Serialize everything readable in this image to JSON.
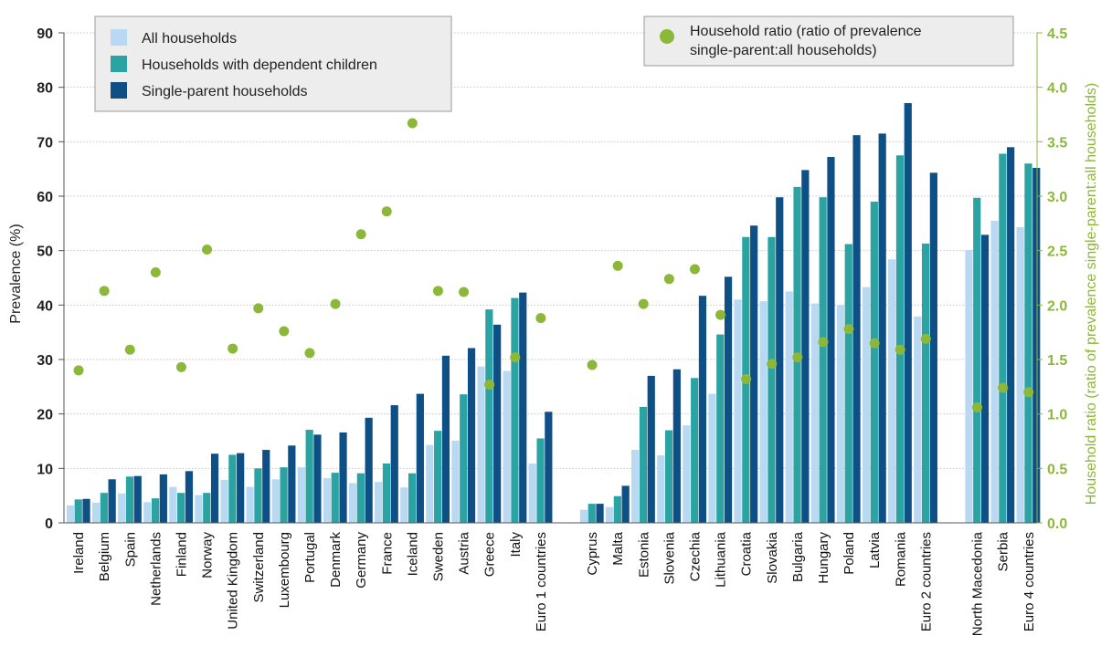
{
  "chart_data": {
    "type": "bar",
    "ylabel": "Prevalence (%)",
    "y2label": "Household  ratio (ratio of prevalence single-parent:all households)",
    "ylim": [
      0,
      90
    ],
    "y2lim": [
      0,
      4.5
    ],
    "yticks": [
      "0",
      "10",
      "20",
      "30",
      "40",
      "50",
      "60",
      "70",
      "80",
      "90"
    ],
    "y2ticks": [
      "0.0",
      "0.5",
      "1.0",
      "1.5",
      "2.0",
      "2.5",
      "3.0",
      "3.5",
      "4.0",
      "4.5"
    ],
    "grid": "horizontal",
    "groups": [
      {
        "start": 0,
        "end": 19
      },
      {
        "start": 20,
        "end": 36
      },
      {
        "start": 37,
        "end": 39
      }
    ],
    "categories": [
      "Ireland",
      "Belgium",
      "Spain",
      "Netherlands",
      "Finland",
      "Norway",
      "United Kingdom",
      "Switzerland",
      "Luxembourg",
      "Portugal",
      "Denmark",
      "Germany",
      "France",
      "Iceland",
      "Sweden",
      "Austria",
      "Greece",
      "Italy",
      "Euro 1 countries",
      "Cyprus",
      "Malta",
      "Estonia",
      "Slovenia",
      "Czechia",
      "Lithuania",
      "Croatia",
      "Slovakia",
      "Bulgaria",
      "Hungary",
      "Poland",
      "Latvia",
      "Romania",
      "Euro 2 countries",
      "North Macedonia",
      "Serbia",
      "Euro 4 countries"
    ],
    "series": [
      {
        "name": "All households",
        "color": "#b9d8f2",
        "values": [
          3.2,
          3.7,
          5.4,
          3.8,
          6.6,
          5.1,
          7.9,
          6.6,
          8.0,
          10.2,
          8.2,
          7.3,
          7.5,
          6.5,
          14.3,
          15.1,
          28.7,
          27.9,
          10.9,
          2.4,
          2.9,
          13.4,
          12.4,
          17.9,
          23.7,
          41.0,
          40.7,
          42.5,
          40.3,
          40.0,
          43.3,
          48.4,
          37.9,
          50.1,
          55.5,
          54.3
        ]
      },
      {
        "name": "Households with dependent children",
        "color": "#2ba3a3",
        "values": [
          4.3,
          5.5,
          8.5,
          4.5,
          5.5,
          5.5,
          12.5,
          10.0,
          10.2,
          17.1,
          9.2,
          9.1,
          10.9,
          9.1,
          16.9,
          23.6,
          39.2,
          41.3,
          15.5,
          3.5,
          4.9,
          21.3,
          17.0,
          26.6,
          34.6,
          52.5,
          52.5,
          61.7,
          59.8,
          51.2,
          59.0,
          67.5,
          51.3,
          59.7,
          67.8,
          66.0
        ]
      },
      {
        "name": "Single-parent households",
        "color": "#0e4f86",
        "values": [
          4.4,
          8.0,
          8.6,
          8.9,
          9.5,
          12.7,
          12.8,
          13.4,
          14.2,
          16.2,
          16.6,
          19.3,
          21.6,
          23.7,
          30.7,
          32.1,
          36.4,
          42.3,
          20.4,
          3.5,
          6.8,
          27.0,
          28.2,
          41.7,
          45.2,
          54.6,
          59.8,
          64.8,
          67.2,
          71.2,
          71.5,
          77.1,
          64.3,
          52.9,
          69.0,
          65.2
        ]
      },
      {
        "name": "Household  ratio (ratio of prevalence single-parent:all households)",
        "color": "#8cb83a",
        "axis": "right",
        "type": "scatter",
        "values": [
          1.4,
          2.13,
          1.59,
          2.3,
          1.43,
          2.51,
          1.6,
          1.97,
          1.76,
          1.56,
          2.01,
          2.65,
          2.86,
          3.67,
          2.13,
          2.12,
          1.27,
          1.52,
          1.88,
          1.45,
          2.36,
          2.01,
          2.24,
          2.33,
          1.91,
          1.32,
          1.46,
          1.52,
          1.66,
          1.78,
          1.65,
          1.59,
          1.69,
          1.06,
          1.24,
          1.2
        ]
      }
    ],
    "legends": [
      {
        "entries": [
          "All households",
          "Households with dependent children",
          "Single-parent households"
        ]
      },
      {
        "entries": [
          "Household  ratio (ratio of prevalence",
          "single-parent:all households)"
        ]
      }
    ]
  }
}
